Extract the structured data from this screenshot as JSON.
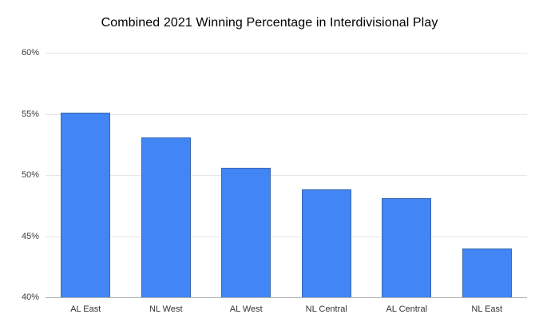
{
  "chart_data": {
    "type": "bar",
    "title": "Combined 2021 Winning Percentage in Interdivisional Play",
    "categories": [
      "AL East",
      "NL West",
      "AL West",
      "NL Central",
      "AL Central",
      "NL East"
    ],
    "values": [
      55.1,
      53.1,
      50.6,
      48.8,
      48.1,
      44.0
    ],
    "ylim": [
      40,
      60
    ],
    "yticks": [
      {
        "value": 40,
        "label": "40%"
      },
      {
        "value": 45,
        "label": "45%"
      },
      {
        "value": 50,
        "label": "50%"
      },
      {
        "value": 55,
        "label": "55%"
      },
      {
        "value": 60,
        "label": "60%"
      }
    ],
    "xlabel": "",
    "ylabel": "",
    "grid": true,
    "legend": "none",
    "bar_color": "#4285f4",
    "bar_border_color": "#3a66b0",
    "gridline_color": "#e6e6e6",
    "axis_line_color": "#b3b3b3",
    "background": "#ffffff"
  }
}
